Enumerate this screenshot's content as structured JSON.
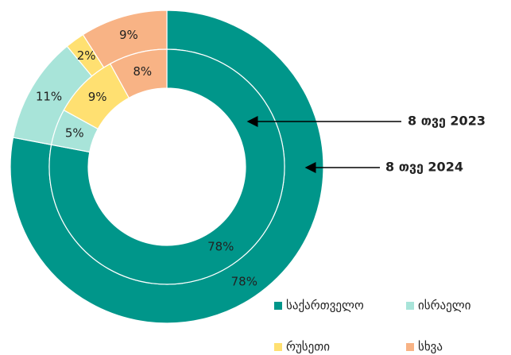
{
  "chart_data": {
    "type": "donut",
    "categories": [
      "საქართველო",
      "ისრაელი",
      "რუსეთი",
      "სხვა"
    ],
    "colors": [
      "#00968a",
      "#a8e4d9",
      "#ffe071",
      "#f8b385"
    ],
    "series": [
      {
        "name": "8 თვე 2024",
        "values": [
          78,
          11,
          2,
          9
        ],
        "value_labels": [
          "78%",
          "11%",
          "2%",
          "9%"
        ]
      },
      {
        "name": "8 თვე 2023",
        "values": [
          78,
          5,
          9,
          8
        ],
        "value_labels": [
          "78%",
          "5%",
          "9%",
          "8%"
        ]
      }
    ],
    "legend": "bottom-right"
  }
}
